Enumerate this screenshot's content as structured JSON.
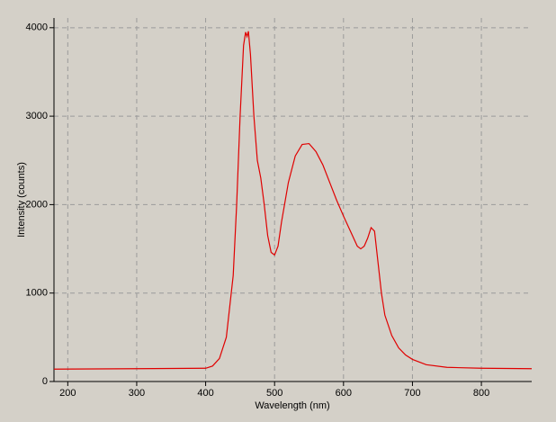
{
  "chart_data": {
    "type": "line",
    "xlabel": "Wavelength (nm)",
    "ylabel": "Intensity (counts)",
    "x": [
      180,
      300,
      400,
      410,
      420,
      430,
      440,
      445,
      450,
      455,
      458,
      460,
      462,
      465,
      470,
      475,
      480,
      485,
      490,
      495,
      500,
      505,
      510,
      520,
      530,
      540,
      550,
      560,
      570,
      580,
      590,
      600,
      610,
      620,
      625,
      630,
      635,
      640,
      645,
      650,
      655,
      660,
      670,
      680,
      690,
      700,
      720,
      750,
      800,
      873
    ],
    "values": [
      140,
      145,
      150,
      175,
      260,
      500,
      1200,
      2000,
      3000,
      3800,
      3950,
      3900,
      3960,
      3700,
      3000,
      2500,
      2300,
      2000,
      1650,
      1460,
      1430,
      1530,
      1800,
      2250,
      2550,
      2680,
      2690,
      2600,
      2450,
      2250,
      2050,
      1870,
      1700,
      1530,
      1500,
      1530,
      1620,
      1740,
      1700,
      1350,
      1000,
      750,
      520,
      380,
      300,
      250,
      190,
      160,
      150,
      145
    ],
    "color": "#e00000",
    "xlim": [
      180,
      873
    ],
    "ylim": [
      0,
      4110
    ],
    "xticks": [
      200,
      300,
      400,
      500,
      600,
      700,
      800
    ],
    "yticks": [
      0,
      1000,
      2000,
      3000,
      4000
    ],
    "grid": true
  }
}
